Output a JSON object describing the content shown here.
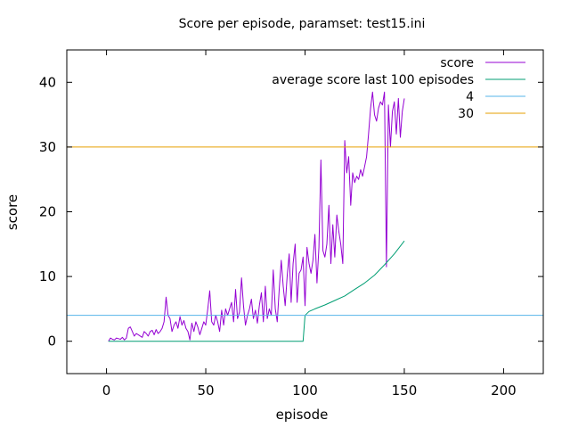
{
  "chart_data": {
    "type": "line",
    "title": "Score per episode, paramset: test15.ini",
    "xlabel": "episode",
    "ylabel": "score",
    "xlim": [
      -20,
      220
    ],
    "ylim": [
      -5,
      45
    ],
    "xticks": [
      0,
      50,
      100,
      150,
      200
    ],
    "yticks": [
      0,
      10,
      20,
      30,
      40
    ],
    "legend_position": "top-right",
    "series": [
      {
        "name": "score",
        "color": "#9400d3",
        "x": [
          1,
          2,
          3,
          4,
          5,
          6,
          7,
          8,
          9,
          10,
          11,
          12,
          13,
          14,
          15,
          16,
          17,
          18,
          19,
          20,
          21,
          22,
          23,
          24,
          25,
          26,
          27,
          28,
          29,
          30,
          31,
          32,
          33,
          34,
          35,
          36,
          37,
          38,
          39,
          40,
          41,
          42,
          43,
          44,
          45,
          46,
          47,
          48,
          49,
          50,
          51,
          52,
          53,
          54,
          55,
          56,
          57,
          58,
          59,
          60,
          61,
          62,
          63,
          64,
          65,
          66,
          67,
          68,
          69,
          70,
          71,
          72,
          73,
          74,
          75,
          76,
          77,
          78,
          79,
          80,
          81,
          82,
          83,
          84,
          85,
          86,
          87,
          88,
          89,
          90,
          91,
          92,
          93,
          94,
          95,
          96,
          97,
          98,
          99,
          100,
          101,
          102,
          103,
          104,
          105,
          106,
          107,
          108,
          109,
          110,
          111,
          112,
          113,
          114,
          115,
          116,
          117,
          118,
          119,
          120,
          121,
          122,
          123,
          124,
          125,
          126,
          127,
          128,
          129,
          130,
          131,
          132,
          133,
          134,
          135,
          136,
          137,
          138,
          139,
          140,
          141,
          142,
          143,
          144,
          145,
          146,
          147,
          148,
          149,
          150
        ],
        "y": [
          0,
          0.5,
          0.3,
          0.2,
          0.5,
          0.4,
          0.3,
          0.6,
          0.2,
          0.5,
          2,
          2.2,
          1.5,
          0.8,
          1.2,
          1.0,
          0.8,
          0.6,
          1.5,
          1.2,
          0.8,
          1.5,
          1.7,
          1.0,
          1.8,
          1.2,
          1.5,
          2.0,
          3.0,
          6.8,
          4.0,
          3.5,
          1.5,
          2.5,
          3.0,
          2.0,
          3.8,
          2.5,
          3.2,
          2.0,
          1.5,
          0.2,
          2.8,
          1.5,
          3.0,
          2.2,
          1.0,
          2.0,
          3.0,
          2.5,
          5.0,
          7.8,
          3.0,
          2.5,
          4.0,
          3.0,
          1.5,
          4.8,
          2.5,
          5.0,
          4.0,
          5.0,
          6.0,
          3.0,
          8.0,
          3.5,
          4.5,
          9.8,
          5.5,
          2.5,
          4.0,
          5.0,
          6.5,
          3.5,
          4.8,
          2.8,
          5.5,
          7.5,
          3.0,
          8.5,
          3.5,
          5.0,
          4.0,
          11.0,
          5.0,
          3.0,
          8.0,
          12.5,
          8.5,
          5.5,
          10.0,
          13.5,
          6.0,
          12.0,
          15.0,
          6.0,
          10.5,
          11.0,
          13.0,
          5.5,
          14.5,
          12.0,
          10.5,
          12.5,
          16.5,
          9.0,
          14.5,
          28.0,
          14.0,
          13.0,
          15.0,
          21.0,
          12.0,
          18.0,
          13.0,
          19.5,
          17.0,
          15.0,
          12.0,
          31.0,
          26.0,
          28.5,
          21.0,
          26.0,
          24.5,
          25.5,
          25.0,
          26.5,
          25.5,
          27.0,
          28.5,
          32.0,
          36.0,
          38.5,
          35.0,
          34.0,
          36.0,
          37.0,
          36.5,
          38.5,
          11.5,
          36.5,
          30.0,
          35.5,
          37.0,
          32.0,
          37.5,
          31.5,
          35.5,
          37.5
        ]
      },
      {
        "name": "average score last 100 episodes",
        "color": "#009e73",
        "x": [
          1,
          99,
          100,
          102,
          105,
          110,
          115,
          120,
          125,
          130,
          135,
          140,
          145,
          150
        ],
        "y": [
          0,
          0,
          4.0,
          4.6,
          5.0,
          5.6,
          6.3,
          7.0,
          8.0,
          9.0,
          10.2,
          11.8,
          13.5,
          15.5
        ]
      },
      {
        "name": "4",
        "color": "#56b4e9",
        "constant": 4
      },
      {
        "name": "30",
        "color": "#e69f00",
        "constant": 30
      }
    ]
  }
}
